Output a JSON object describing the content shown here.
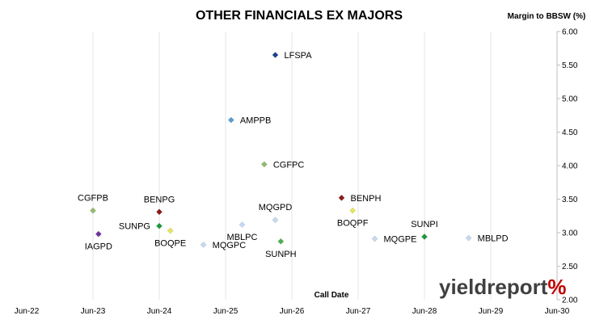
{
  "chart_data": {
    "type": "scatter",
    "title": "OTHER FINANCIALS EX MAJORS",
    "ylabel": "Margin to BBSW (%)",
    "xlabel": "Call Date",
    "ylim": [
      2.0,
      6.0
    ],
    "yticks": [
      "2.00",
      "2.50",
      "3.00",
      "3.50",
      "4.00",
      "4.50",
      "5.00",
      "5.50",
      "6.00"
    ],
    "xlim": [
      "2022-06",
      "2030-06"
    ],
    "xticks": [
      "Jun-22",
      "Jun-23",
      "Jun-24",
      "Jun-25",
      "Jun-26",
      "Jun-27",
      "Jun-28",
      "Jun-29",
      "Jun-30"
    ],
    "grid": "vertical",
    "points": [
      {
        "label": "LFSPA",
        "date": "2026-03",
        "y": 5.65,
        "color": "#1f3f8f",
        "label_pos": "right"
      },
      {
        "label": "AMPPB",
        "date": "2025-07",
        "y": 4.68,
        "color": "#5b9bd5",
        "label_pos": "right"
      },
      {
        "label": "CGFPC",
        "date": "2026-01",
        "y": 4.02,
        "color": "#8fbc6f",
        "label_pos": "right"
      },
      {
        "label": "CGFPB",
        "date": "2023-06",
        "y": 3.33,
        "color": "#8fbc6f",
        "label_pos": "above"
      },
      {
        "label": "BENPG",
        "date": "2024-06",
        "y": 3.31,
        "color": "#8b1a1a",
        "label_pos": "above"
      },
      {
        "label": "BENPH",
        "date": "2027-03",
        "y": 3.52,
        "color": "#8b1a1a",
        "label_pos": "right"
      },
      {
        "label": "SUNPG",
        "date": "2024-06",
        "y": 3.1,
        "color": "#1a9a3a",
        "label_pos": "left"
      },
      {
        "label": "BOQPE",
        "date": "2024-08",
        "y": 3.03,
        "color": "#e6e65a",
        "label_pos": "below"
      },
      {
        "label": "MQGPC",
        "date": "2025-02",
        "y": 2.82,
        "color": "#c5d9f1",
        "label_pos": "right"
      },
      {
        "label": "IAGPD",
        "date": "2023-07",
        "y": 2.98,
        "color": "#7030a0",
        "label_pos": "below"
      },
      {
        "label": "MBLPC",
        "date": "2025-09",
        "y": 3.12,
        "color": "#c5d9f1",
        "label_pos": "below"
      },
      {
        "label": "MQGPD",
        "date": "2026-03",
        "y": 3.19,
        "color": "#c5d9f1",
        "label_pos": "above"
      },
      {
        "label": "SUNPH",
        "date": "2026-04",
        "y": 2.87,
        "color": "#4caf50",
        "label_pos": "below"
      },
      {
        "label": "BOQPF",
        "date": "2027-05",
        "y": 3.33,
        "color": "#e6e65a",
        "label_pos": "below"
      },
      {
        "label": "MQGPE",
        "date": "2027-09",
        "y": 2.91,
        "color": "#c5d9f1",
        "label_pos": "right"
      },
      {
        "label": "SUNPI",
        "date": "2028-06",
        "y": 2.94,
        "color": "#1a9a3a",
        "label_pos": "above"
      },
      {
        "label": "MBLPD",
        "date": "2029-02",
        "y": 2.92,
        "color": "#c5d9f1",
        "label_pos": "right"
      }
    ]
  },
  "logo": {
    "text_main": "yieldreport",
    "text_mark": "%"
  }
}
